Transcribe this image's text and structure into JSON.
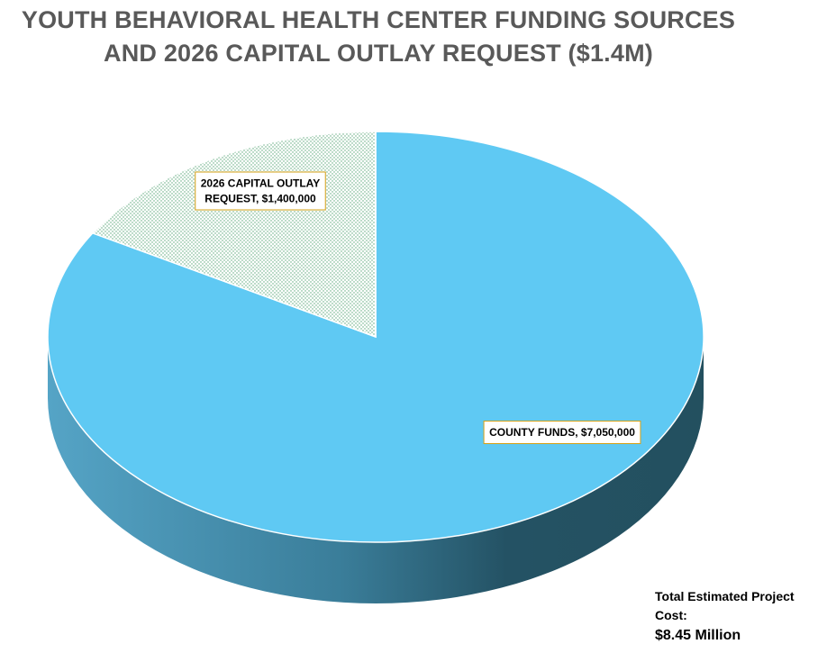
{
  "chart_data": {
    "type": "pie",
    "title_lines": [
      "YOUTH BEHAVIORAL HEALTH CENTER FUNDING SOURCES",
      "AND 2026 CAPITAL OUTLAY REQUEST ($1.4M)"
    ],
    "slices": [
      {
        "label_lines": [
          "2026 CAPITAL OUTLAY",
          "REQUEST, $1,400,000"
        ],
        "value": 1400000,
        "color": "#e8f4ec",
        "pattern_dot_color": "#5aa87a"
      },
      {
        "label_lines": [
          "COUNTY FUNDS, $7,050,000"
        ],
        "value": 7050000,
        "color": "#5fc9f3",
        "side_color_light": "#55a4c6",
        "side_color_dark": "#245264"
      }
    ],
    "style": "3d-pie",
    "label_border_color": "#d4a017"
  },
  "total": {
    "label": "Total Estimated Project Cost:",
    "value": "$8.45 Million"
  }
}
